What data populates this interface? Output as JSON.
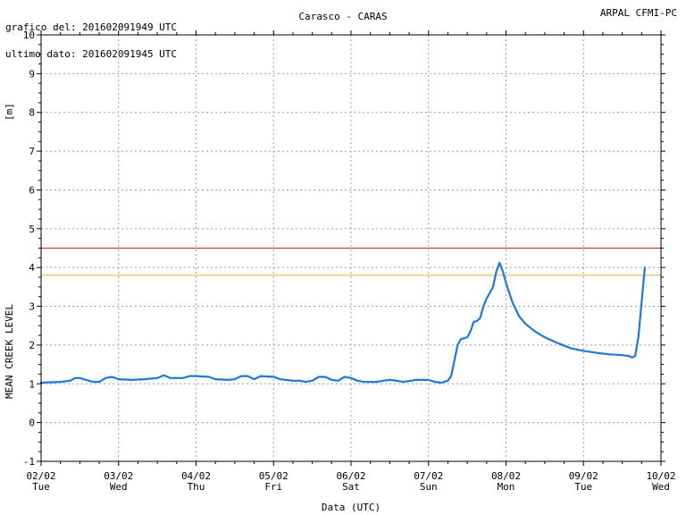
{
  "header": {
    "line1": "grafico del: 201602091949 UTC",
    "line2": "ultimo dato: 201602091945 UTC",
    "title": "Carasco - CARAS",
    "source": "ARPAL CFMI-PC"
  },
  "chart_data": {
    "type": "line",
    "title": "Carasco - CARAS",
    "xlabel": "Data (UTC)",
    "ylabel": "MEAN CREEK LEVEL",
    "yunit": "[m]",
    "ylim": [
      -1,
      10
    ],
    "xlim": [
      "2016-02-02",
      "2016-02-10"
    ],
    "grid": true,
    "x_ticks": [
      {
        "date": "02/02",
        "day": "Tue"
      },
      {
        "date": "03/02",
        "day": "Wed"
      },
      {
        "date": "04/02",
        "day": "Thu"
      },
      {
        "date": "05/02",
        "day": "Fri"
      },
      {
        "date": "06/02",
        "day": "Sat"
      },
      {
        "date": "07/02",
        "day": "Sun"
      },
      {
        "date": "08/02",
        "day": "Mon"
      },
      {
        "date": "09/02",
        "day": "Tue"
      },
      {
        "date": "10/02",
        "day": "Wed"
      }
    ],
    "y_ticks": [
      -1,
      0,
      1,
      2,
      3,
      4,
      5,
      6,
      7,
      8,
      9,
      10
    ],
    "thresholds": [
      {
        "value": 4.5,
        "color": "#cc2222"
      },
      {
        "value": 3.8,
        "color": "#e8b030"
      }
    ],
    "series": [
      {
        "color": "#1e78dc",
        "points": [
          [
            "2016-02-02 00:00",
            1.03
          ],
          [
            "2016-02-02 06:00",
            1.05
          ],
          [
            "2016-02-02 09:00",
            1.08
          ],
          [
            "2016-02-02 10:30",
            1.15
          ],
          [
            "2016-02-02 12:00",
            1.15
          ],
          [
            "2016-02-02 14:00",
            1.1
          ],
          [
            "2016-02-02 16:00",
            1.05
          ],
          [
            "2016-02-02 18:00",
            1.05
          ],
          [
            "2016-02-02 20:00",
            1.15
          ],
          [
            "2016-02-02 22:00",
            1.18
          ],
          [
            "2016-02-03 00:00",
            1.12
          ],
          [
            "2016-02-03 04:00",
            1.1
          ],
          [
            "2016-02-03 08:00",
            1.12
          ],
          [
            "2016-02-03 12:00",
            1.15
          ],
          [
            "2016-02-03 14:00",
            1.22
          ],
          [
            "2016-02-03 16:00",
            1.15
          ],
          [
            "2016-02-03 20:00",
            1.15
          ],
          [
            "2016-02-03 22:00",
            1.2
          ],
          [
            "2016-02-04 00:00",
            1.2
          ],
          [
            "2016-02-04 04:00",
            1.18
          ],
          [
            "2016-02-04 06:00",
            1.12
          ],
          [
            "2016-02-04 10:00",
            1.1
          ],
          [
            "2016-02-04 12:00",
            1.12
          ],
          [
            "2016-02-04 14:00",
            1.2
          ],
          [
            "2016-02-04 16:00",
            1.2
          ],
          [
            "2016-02-04 18:00",
            1.12
          ],
          [
            "2016-02-04 20:00",
            1.2
          ],
          [
            "2016-02-05 00:00",
            1.18
          ],
          [
            "2016-02-05 02:00",
            1.12
          ],
          [
            "2016-02-05 06:00",
            1.08
          ],
          [
            "2016-02-05 08:00",
            1.08
          ],
          [
            "2016-02-05 10:00",
            1.05
          ],
          [
            "2016-02-05 12:00",
            1.08
          ],
          [
            "2016-02-05 14:00",
            1.18
          ],
          [
            "2016-02-05 16:00",
            1.18
          ],
          [
            "2016-02-05 18:00",
            1.1
          ],
          [
            "2016-02-05 20:00",
            1.08
          ],
          [
            "2016-02-05 22:00",
            1.18
          ],
          [
            "2016-02-06 00:00",
            1.15
          ],
          [
            "2016-02-06 02:00",
            1.08
          ],
          [
            "2016-02-06 04:00",
            1.05
          ],
          [
            "2016-02-06 08:00",
            1.05
          ],
          [
            "2016-02-06 10:00",
            1.08
          ],
          [
            "2016-02-06 12:00",
            1.1
          ],
          [
            "2016-02-06 14:00",
            1.08
          ],
          [
            "2016-02-06 16:00",
            1.05
          ],
          [
            "2016-02-06 18:00",
            1.07
          ],
          [
            "2016-02-06 20:00",
            1.1
          ],
          [
            "2016-02-07 00:00",
            1.1
          ],
          [
            "2016-02-07 02:00",
            1.05
          ],
          [
            "2016-02-07 04:00",
            1.03
          ],
          [
            "2016-02-07 06:00",
            1.08
          ],
          [
            "2016-02-07 07:00",
            1.2
          ],
          [
            "2016-02-07 08:00",
            1.6
          ],
          [
            "2016-02-07 09:00",
            2.0
          ],
          [
            "2016-02-07 10:00",
            2.15
          ],
          [
            "2016-02-07 12:00",
            2.2
          ],
          [
            "2016-02-07 13:00",
            2.35
          ],
          [
            "2016-02-07 14:00",
            2.6
          ],
          [
            "2016-02-07 15:00",
            2.62
          ],
          [
            "2016-02-07 16:00",
            2.7
          ],
          [
            "2016-02-07 17:00",
            3.0
          ],
          [
            "2016-02-07 18:00",
            3.2
          ],
          [
            "2016-02-07 20:00",
            3.5
          ],
          [
            "2016-02-07 21:00",
            3.9
          ],
          [
            "2016-02-07 22:00",
            4.12
          ],
          [
            "2016-02-07 23:00",
            3.9
          ],
          [
            "2016-02-08 00:00",
            3.6
          ],
          [
            "2016-02-08 02:00",
            3.1
          ],
          [
            "2016-02-08 04:00",
            2.75
          ],
          [
            "2016-02-08 06:00",
            2.55
          ],
          [
            "2016-02-08 09:00",
            2.35
          ],
          [
            "2016-02-08 12:00",
            2.2
          ],
          [
            "2016-02-08 16:00",
            2.05
          ],
          [
            "2016-02-08 20:00",
            1.92
          ],
          [
            "2016-02-09 00:00",
            1.85
          ],
          [
            "2016-02-09 04:00",
            1.8
          ],
          [
            "2016-02-09 08:00",
            1.76
          ],
          [
            "2016-02-09 12:00",
            1.74
          ],
          [
            "2016-02-09 14:00",
            1.72
          ],
          [
            "2016-02-09 15:00",
            1.68
          ],
          [
            "2016-02-09 16:00",
            1.72
          ],
          [
            "2016-02-09 17:00",
            2.2
          ],
          [
            "2016-02-09 18:00",
            3.1
          ],
          [
            "2016-02-09 19:00",
            4.0
          ]
        ]
      }
    ]
  }
}
